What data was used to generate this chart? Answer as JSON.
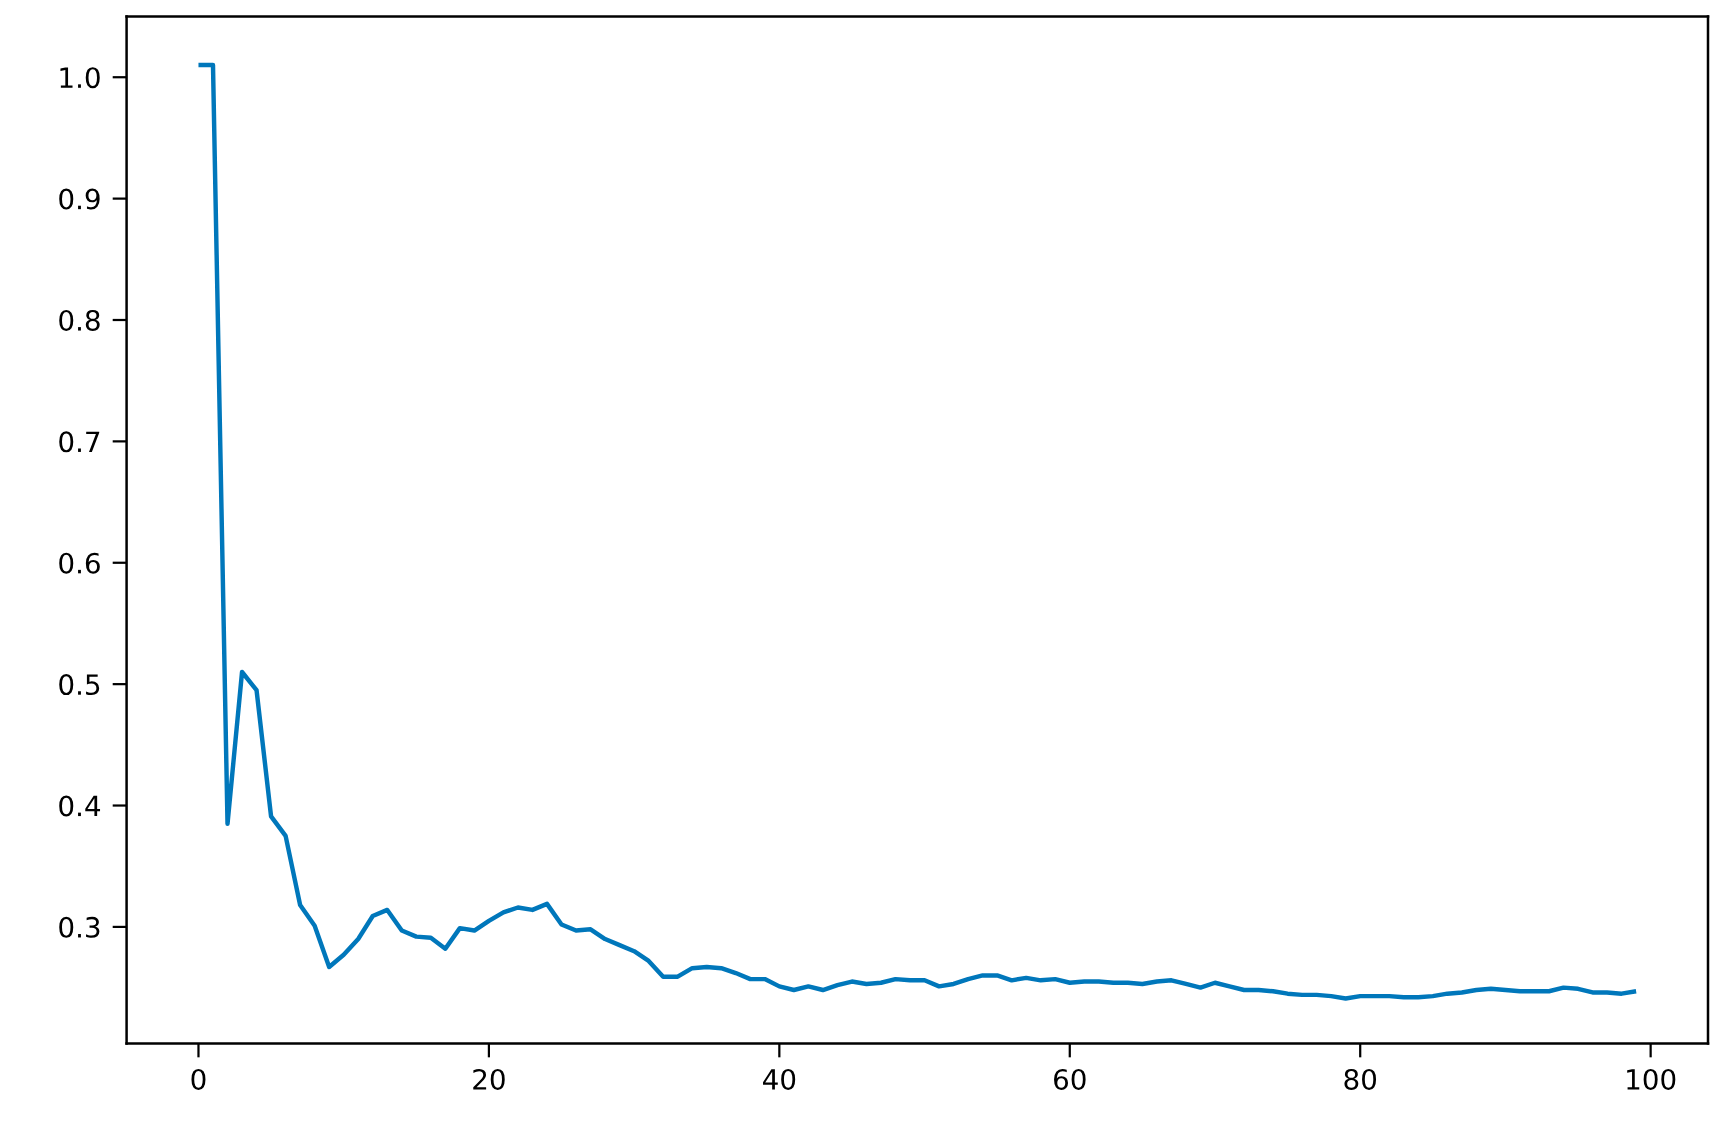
{
  "chart_data": {
    "type": "line",
    "x": [
      0,
      1,
      2,
      3,
      4,
      5,
      6,
      7,
      8,
      9,
      10,
      11,
      12,
      13,
      14,
      15,
      16,
      17,
      18,
      19,
      20,
      21,
      22,
      23,
      24,
      25,
      26,
      27,
      28,
      29,
      30,
      31,
      32,
      33,
      34,
      35,
      36,
      37,
      38,
      39,
      40,
      41,
      42,
      43,
      44,
      45,
      46,
      47,
      48,
      49,
      50,
      51,
      52,
      53,
      54,
      55,
      56,
      57,
      58,
      59,
      60,
      61,
      62,
      63,
      64,
      65,
      66,
      67,
      68,
      69,
      70,
      71,
      72,
      73,
      74,
      75,
      76,
      77,
      78,
      79,
      80,
      81,
      82,
      83,
      84,
      85,
      86,
      87,
      88,
      89,
      90,
      91,
      92,
      93,
      94,
      95,
      96,
      97,
      98,
      99
    ],
    "series": [
      {
        "color": "#0077bb",
        "values": [
          1.01,
          1.01,
          0.385,
          0.51,
          0.495,
          0.391,
          0.375,
          0.318,
          0.301,
          0.267,
          0.277,
          0.29,
          0.309,
          0.314,
          0.297,
          0.292,
          0.291,
          0.282,
          0.299,
          0.297,
          0.305,
          0.312,
          0.316,
          0.314,
          0.319,
          0.302,
          0.297,
          0.298,
          0.29,
          0.285,
          0.28,
          0.272,
          0.259,
          0.259,
          0.266,
          0.267,
          0.266,
          0.262,
          0.257,
          0.257,
          0.251,
          0.248,
          0.251,
          0.248,
          0.252,
          0.255,
          0.253,
          0.254,
          0.257,
          0.256,
          0.256,
          0.251,
          0.253,
          0.257,
          0.26,
          0.26,
          0.256,
          0.258,
          0.256,
          0.257,
          0.254,
          0.255,
          0.255,
          0.254,
          0.254,
          0.253,
          0.255,
          0.256,
          0.253,
          0.25,
          0.254,
          0.251,
          0.248,
          0.248,
          0.247,
          0.245,
          0.244,
          0.244,
          0.243,
          0.241,
          0.243,
          0.243,
          0.243,
          0.242,
          0.242,
          0.243,
          0.245,
          0.246,
          0.248,
          0.249,
          0.248,
          0.247,
          0.247,
          0.247,
          0.25,
          0.249,
          0.246,
          0.246,
          0.245,
          0.247
        ]
      }
    ],
    "xlim": [
      -4.95,
      103.95
    ],
    "ylim": [
      0.204,
      1.05
    ],
    "xticks": [
      0,
      20,
      40,
      60,
      80,
      100
    ],
    "yticks": [
      0.3,
      0.4,
      0.5,
      0.6,
      0.7,
      0.8,
      0.9,
      {
        "value": 1,
        "label": "1.0"
      }
    ],
    "grid": false,
    "marker": "none",
    "line_style": "solid"
  }
}
